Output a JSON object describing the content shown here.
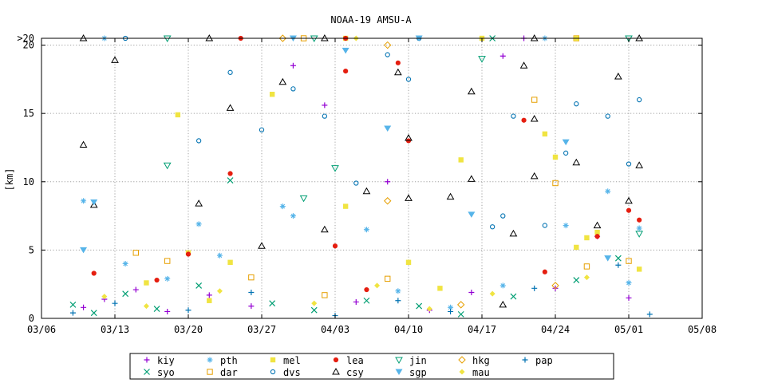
{
  "chart_data": {
    "type": "scatter",
    "title": "NOAA-19 AMSU-A",
    "xlabel": "",
    "ylabel": "[km]",
    "xlim": [
      "03/06",
      "05/08"
    ],
    "ylim": [
      0,
      20.5
    ],
    "x_ticks": [
      "03/06",
      "03/13",
      "03/20",
      "03/27",
      "04/03",
      "04/10",
      "04/17",
      "04/24",
      "05/01",
      "05/08"
    ],
    "y_ticks": [
      "0",
      "5",
      "10",
      "15",
      "20",
      ">20"
    ],
    "grid": true,
    "legend_position": "bottom",
    "series": [
      {
        "name": "kiy",
        "color": "#9400d3",
        "marker": "plus",
        "points": [
          [
            "03/10",
            0.8
          ],
          [
            "03/12",
            1.4
          ],
          [
            "03/15",
            2.1
          ],
          [
            "03/18",
            0.5
          ],
          [
            "03/22",
            1.7
          ],
          [
            "03/26",
            0.9
          ],
          [
            "03/30",
            18.5
          ],
          [
            "04/02",
            15.6
          ],
          [
            "04/05",
            1.2
          ],
          [
            "04/08",
            10.0
          ],
          [
            "04/12",
            0.6
          ],
          [
            "04/16",
            1.9
          ],
          [
            "04/19",
            19.2
          ],
          [
            "04/24",
            2.2
          ],
          [
            "04/28",
            6.0
          ],
          [
            "05/01",
            1.5
          ],
          [
            "04/21",
            20.5
          ]
        ]
      },
      {
        "name": "syo",
        "color": "#009e73",
        "marker": "x",
        "points": [
          [
            "03/09",
            1.0
          ],
          [
            "03/11",
            0.4
          ],
          [
            "03/14",
            1.8
          ],
          [
            "03/17",
            0.7
          ],
          [
            "03/21",
            2.4
          ],
          [
            "03/24",
            10.1
          ],
          [
            "03/28",
            1.1
          ],
          [
            "04/01",
            0.6
          ],
          [
            "04/06",
            1.3
          ],
          [
            "04/11",
            0.9
          ],
          [
            "04/15",
            0.3
          ],
          [
            "04/20",
            1.6
          ],
          [
            "04/26",
            2.8
          ],
          [
            "04/30",
            4.4
          ],
          [
            "04/18",
            20.5
          ]
        ]
      },
      {
        "name": "pth",
        "color": "#56b4e9",
        "marker": "star",
        "points": [
          [
            "03/10",
            8.6
          ],
          [
            "03/14",
            4.0
          ],
          [
            "03/18",
            2.9
          ],
          [
            "03/21",
            6.9
          ],
          [
            "03/23",
            4.6
          ],
          [
            "03/29",
            8.2
          ],
          [
            "03/30",
            7.5
          ],
          [
            "04/06",
            6.5
          ],
          [
            "04/09",
            2.0
          ],
          [
            "04/14",
            0.8
          ],
          [
            "04/19",
            2.4
          ],
          [
            "04/25",
            6.8
          ],
          [
            "04/29",
            9.3
          ],
          [
            "05/01",
            2.6
          ],
          [
            "05/02",
            6.6
          ],
          [
            "03/12",
            20.5
          ],
          [
            "04/23",
            20.5
          ]
        ]
      },
      {
        "name": "dar",
        "color": "#e69f00",
        "marker": "square-open",
        "points": [
          [
            "03/15",
            4.8
          ],
          [
            "03/18",
            4.2
          ],
          [
            "03/26",
            3.0
          ],
          [
            "04/02",
            1.7
          ],
          [
            "04/08",
            2.9
          ],
          [
            "04/22",
            16.0
          ],
          [
            "04/24",
            9.9
          ],
          [
            "04/27",
            3.8
          ],
          [
            "05/01",
            4.2
          ],
          [
            "03/31",
            20.5
          ],
          [
            "04/26",
            20.5
          ]
        ]
      },
      {
        "name": "mel",
        "color": "#f0e442",
        "marker": "square",
        "points": [
          [
            "03/19",
            14.9
          ],
          [
            "03/20",
            4.8
          ],
          [
            "03/24",
            4.1
          ],
          [
            "03/28",
            16.4
          ],
          [
            "04/04",
            8.2
          ],
          [
            "04/10",
            4.1
          ],
          [
            "04/15",
            11.6
          ],
          [
            "04/23",
            13.5
          ],
          [
            "04/24",
            11.8
          ],
          [
            "04/26",
            5.2
          ],
          [
            "04/27",
            5.9
          ],
          [
            "04/28",
            6.3
          ],
          [
            "05/02",
            3.6
          ],
          [
            "04/04",
            20.5
          ],
          [
            "04/17",
            20.5
          ],
          [
            "04/26",
            20.5
          ],
          [
            "03/16",
            2.6
          ],
          [
            "03/22",
            1.3
          ],
          [
            "04/13",
            2.2
          ]
        ]
      },
      {
        "name": "dvs",
        "color": "#0072b2",
        "marker": "circle",
        "points": [
          [
            "03/21",
            13.0
          ],
          [
            "03/24",
            18.0
          ],
          [
            "03/27",
            13.8
          ],
          [
            "03/30",
            16.8
          ],
          [
            "04/02",
            14.8
          ],
          [
            "04/05",
            9.9
          ],
          [
            "04/08",
            19.3
          ],
          [
            "04/10",
            17.5
          ],
          [
            "04/18",
            6.7
          ],
          [
            "04/19",
            7.5
          ],
          [
            "04/20",
            14.8
          ],
          [
            "04/23",
            6.8
          ],
          [
            "04/25",
            12.1
          ],
          [
            "04/26",
            15.7
          ],
          [
            "04/29",
            14.8
          ],
          [
            "05/02",
            16.0
          ],
          [
            "05/01",
            11.3
          ],
          [
            "03/14",
            20.5
          ],
          [
            "04/11",
            20.5
          ]
        ]
      },
      {
        "name": "lea",
        "color": "#e51e10",
        "marker": "star-filled",
        "points": [
          [
            "03/20",
            4.7
          ],
          [
            "03/24",
            10.6
          ],
          [
            "04/03",
            5.3
          ],
          [
            "04/04",
            18.1
          ],
          [
            "04/09",
            18.7
          ],
          [
            "04/10",
            13.0
          ],
          [
            "04/21",
            14.5
          ],
          [
            "04/23",
            3.4
          ],
          [
            "05/01",
            7.9
          ],
          [
            "05/02",
            7.2
          ],
          [
            "04/28",
            6.0
          ],
          [
            "03/11",
            3.3
          ],
          [
            "03/17",
            2.8
          ],
          [
            "04/06",
            2.1
          ],
          [
            "03/25",
            20.5
          ],
          [
            "04/04",
            20.5
          ]
        ]
      },
      {
        "name": "csy",
        "color": "#000000",
        "marker": "triangle-open",
        "points": [
          [
            "03/10",
            12.7
          ],
          [
            "03/11",
            8.3
          ],
          [
            "03/13",
            18.9
          ],
          [
            "03/21",
            8.4
          ],
          [
            "03/24",
            15.4
          ],
          [
            "03/27",
            5.3
          ],
          [
            "03/29",
            17.3
          ],
          [
            "04/02",
            6.5
          ],
          [
            "04/06",
            9.3
          ],
          [
            "04/09",
            18.0
          ],
          [
            "04/10",
            13.2
          ],
          [
            "04/10",
            8.8
          ],
          [
            "04/14",
            8.9
          ],
          [
            "04/16",
            16.6
          ],
          [
            "04/16",
            10.2
          ],
          [
            "04/19",
            1.0
          ],
          [
            "04/20",
            6.2
          ],
          [
            "04/21",
            18.5
          ],
          [
            "04/22",
            14.6
          ],
          [
            "04/22",
            10.4
          ],
          [
            "04/26",
            11.4
          ],
          [
            "04/28",
            6.8
          ],
          [
            "04/30",
            17.7
          ],
          [
            "05/01",
            8.6
          ],
          [
            "05/02",
            11.2
          ],
          [
            "03/10",
            20.5
          ],
          [
            "03/22",
            20.5
          ],
          [
            "04/02",
            20.5
          ],
          [
            "04/22",
            20.5
          ],
          [
            "05/02",
            20.5
          ]
        ]
      },
      {
        "name": "jin",
        "color": "#009e73",
        "marker": "triangle-down-open",
        "points": [
          [
            "03/18",
            11.2
          ],
          [
            "03/31",
            8.8
          ],
          [
            "04/03",
            11.0
          ],
          [
            "04/17",
            19.0
          ],
          [
            "05/02",
            6.2
          ],
          [
            "03/18",
            20.5
          ],
          [
            "04/01",
            20.5
          ],
          [
            "05/01",
            20.5
          ]
        ]
      },
      {
        "name": "sgp",
        "color": "#56b4e9",
        "marker": "triangle-down",
        "points": [
          [
            "03/10",
            5.0
          ],
          [
            "03/11",
            8.5
          ],
          [
            "04/04",
            19.6
          ],
          [
            "04/08",
            13.9
          ],
          [
            "04/16",
            7.6
          ],
          [
            "04/25",
            12.9
          ],
          [
            "04/29",
            4.4
          ],
          [
            "03/30",
            20.5
          ],
          [
            "04/11",
            20.5
          ]
        ]
      },
      {
        "name": "hkg",
        "color": "#e69f00",
        "marker": "diamond-open",
        "points": [
          [
            "04/08",
            8.6
          ],
          [
            "04/08",
            20.0
          ],
          [
            "04/15",
            1.0
          ],
          [
            "04/24",
            2.4
          ],
          [
            "03/29",
            20.5
          ]
        ]
      },
      {
        "name": "mau",
        "color": "#f0e442",
        "marker": "diamond",
        "points": [
          [
            "03/12",
            1.6
          ],
          [
            "03/16",
            0.9
          ],
          [
            "03/23",
            2.0
          ],
          [
            "04/01",
            1.1
          ],
          [
            "04/07",
            2.4
          ],
          [
            "04/12",
            0.7
          ],
          [
            "04/18",
            1.8
          ],
          [
            "04/27",
            3.0
          ],
          [
            "04/05",
            20.5
          ]
        ]
      },
      {
        "name": "pap",
        "color": "#0072b2",
        "marker": "plus",
        "points": [
          [
            "03/09",
            0.4
          ],
          [
            "03/13",
            1.1
          ],
          [
            "03/20",
            0.6
          ],
          [
            "03/26",
            1.9
          ],
          [
            "04/03",
            0.2
          ],
          [
            "04/09",
            1.3
          ],
          [
            "04/14",
            0.5
          ],
          [
            "04/22",
            2.2
          ],
          [
            "04/30",
            3.9
          ],
          [
            "05/03",
            0.3
          ]
        ]
      }
    ]
  }
}
